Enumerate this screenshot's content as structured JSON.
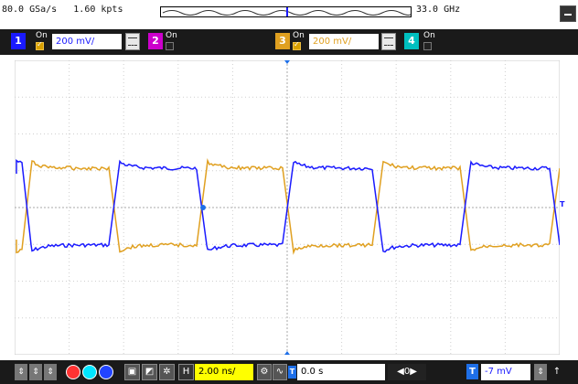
{
  "acquisition": {
    "sample_rate": "80.0 GSa/s",
    "points": "1.60 kpts",
    "bandwidth": "33.0 GHz"
  },
  "channels": [
    {
      "num": "1",
      "state": "On",
      "scale": "200 mV/",
      "enabled": true,
      "color": "#1a1aff"
    },
    {
      "num": "2",
      "state": "On",
      "enabled": false,
      "color": "#cc00cc"
    },
    {
      "num": "3",
      "state": "On",
      "scale": "200 mV/",
      "enabled": true,
      "color": "#e0a020"
    },
    {
      "num": "4",
      "state": "On",
      "enabled": false,
      "color": "#00c0c0"
    }
  ],
  "trigger_marker_label": "T",
  "bottom": {
    "timebase": "2.00 ns/",
    "delay": "0.0 s",
    "delay_step": "0",
    "trigger_level": "-7 mV",
    "trigger_label": "T",
    "horizontal_label": "H"
  },
  "colors": {
    "ch1": "#1a1aff",
    "ch3": "#e0a020",
    "timebase_bg": "#ffff00",
    "trigger_box": "#1e6fe8"
  }
}
